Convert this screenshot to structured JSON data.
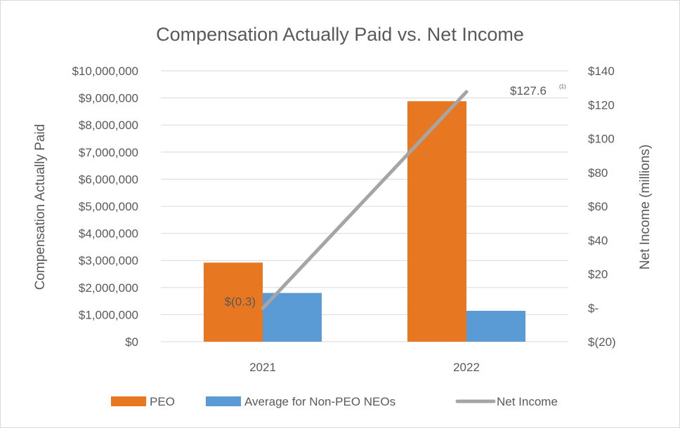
{
  "chart_data": {
    "type": "bar",
    "title": "Compensation Actually Paid vs. Net Income",
    "categories": [
      "2021",
      "2022"
    ],
    "series": [
      {
        "name": "PEO",
        "type": "bar",
        "axis": "left",
        "color": "#E87722",
        "values": [
          2920000,
          8880000
        ]
      },
      {
        "name": "Average for Non-PEO NEOs",
        "type": "bar",
        "axis": "left",
        "color": "#5B9BD5",
        "values": [
          1800000,
          1140000
        ]
      },
      {
        "name": "Net Income",
        "type": "line",
        "axis": "right",
        "color": "#A5A5A5",
        "values": [
          -0.3,
          127.6
        ],
        "labels": [
          "$(0.3)",
          "$127.6"
        ],
        "label_notes": [
          "",
          "(1)"
        ]
      }
    ],
    "ylabel": "Compensation Actually Paid",
    "ylim": [
      0,
      10000000
    ],
    "yticks": [
      "$0",
      "$1,000,000",
      "$2,000,000",
      "$3,000,000",
      "$4,000,000",
      "$5,000,000",
      "$6,000,000",
      "$7,000,000",
      "$8,000,000",
      "$9,000,000",
      "$10,000,000"
    ],
    "y2label": "Net Income (millions)",
    "y2lim": [
      -20,
      140
    ],
    "y2ticks": [
      "$(20)",
      "$-",
      "$20",
      "$40",
      "$60",
      "$80",
      "$100",
      "$120",
      "$140"
    ],
    "grid": true,
    "legend_position": "bottom"
  }
}
